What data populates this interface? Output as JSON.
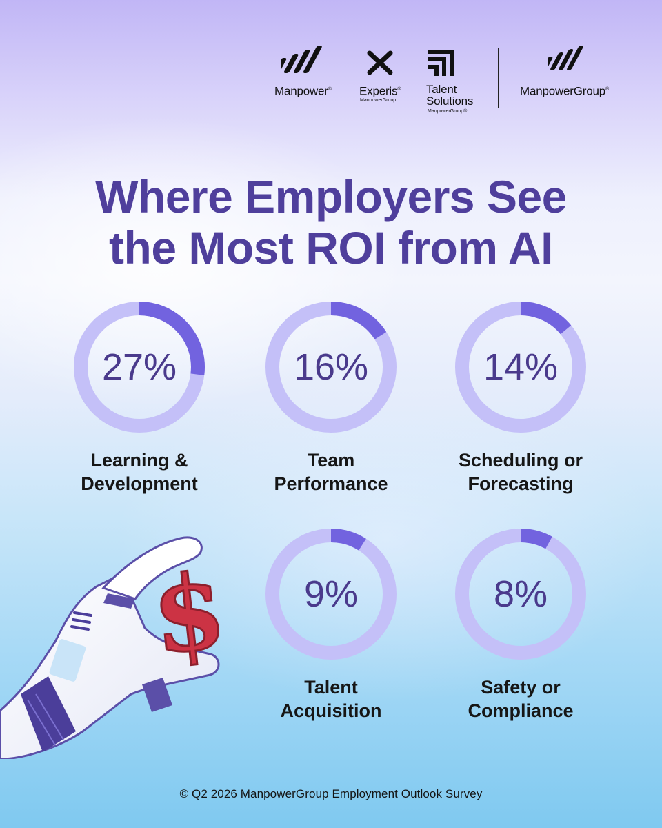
{
  "brands": [
    {
      "name": "Manpower",
      "registered": "®",
      "sub": "",
      "icon": "manpower-slashes-logo-icon"
    },
    {
      "name": "Experis",
      "registered": "®",
      "sub": "ManpowerGroup",
      "icon": "experis-x-logo-icon"
    },
    {
      "name_line1": "Talent",
      "name_line2": "Solutions",
      "sub": "ManpowerGroup®",
      "icon": "talent-solutions-logo-icon"
    },
    {
      "name": "ManpowerGroup",
      "registered": "®",
      "sub": "",
      "icon": "manpowergroup-slashes-logo-icon"
    }
  ],
  "title_line1": "Where Employers See",
  "title_line2": "the Most ROI from AI",
  "chart_data": {
    "type": "donut",
    "unit": "%",
    "items": [
      {
        "label_line1": "Learning &",
        "label_line2": "Development",
        "value": 27,
        "display": "27%"
      },
      {
        "label_line1": "Team",
        "label_line2": "Performance",
        "value": 16,
        "display": "16%"
      },
      {
        "label_line1": "Scheduling or",
        "label_line2": "Forecasting",
        "value": 14,
        "display": "14%"
      },
      {
        "label_line1": "Talent",
        "label_line2": "Acquisition",
        "value": 9,
        "display": "9%"
      },
      {
        "label_line1": "Safety or",
        "label_line2": "Compliance",
        "value": 8,
        "display": "8%"
      }
    ],
    "colors": {
      "filled": "#7263df",
      "track": "#c4c0f8"
    }
  },
  "illustration": {
    "icon": "robot-hand-holding-dollar-icon",
    "color_dollar": "#cc3344"
  },
  "footer": "© Q2 2026 ManpowerGroup Employment Outlook Survey"
}
